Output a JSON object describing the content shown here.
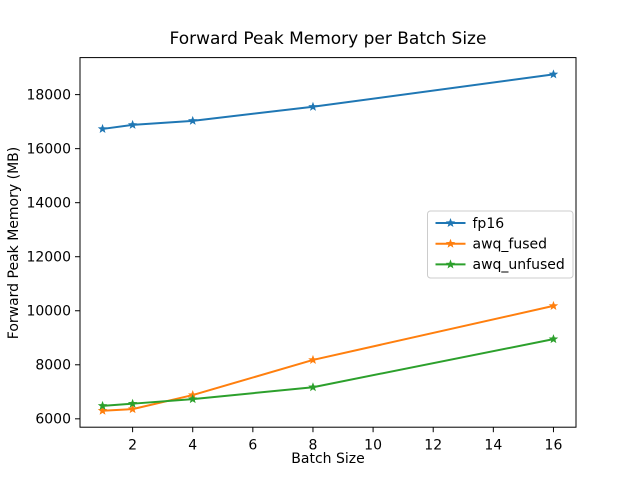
{
  "chart_data": {
    "type": "line",
    "title": "Forward Peak Memory per Batch Size",
    "xlabel": "Batch Size",
    "ylabel": "Forward Peak Memory (MB)",
    "x": [
      1,
      2,
      4,
      8,
      16
    ],
    "series": [
      {
        "name": "fp16",
        "color": "#1f77b4",
        "values": [
          16730,
          16880,
          17030,
          17550,
          18750
        ]
      },
      {
        "name": "awq_fused",
        "color": "#ff7f0e",
        "values": [
          6300,
          6360,
          6880,
          8180,
          10180
        ]
      },
      {
        "name": "awq_unfused",
        "color": "#2ca02c",
        "values": [
          6480,
          6560,
          6730,
          7170,
          8950
        ]
      }
    ],
    "x_ticks": [
      2,
      4,
      6,
      8,
      10,
      12,
      14,
      16
    ],
    "y_ticks": [
      6000,
      8000,
      10000,
      12000,
      14000,
      16000,
      18000
    ],
    "xlim": [
      0.25,
      16.75
    ],
    "ylim": [
      5690,
      19370
    ],
    "marker": "star",
    "line_width": 2,
    "grid": false,
    "legend_position": "center right",
    "legend_border_color": "#cccccc",
    "axis_color": "#000000",
    "background": "#ffffff"
  }
}
